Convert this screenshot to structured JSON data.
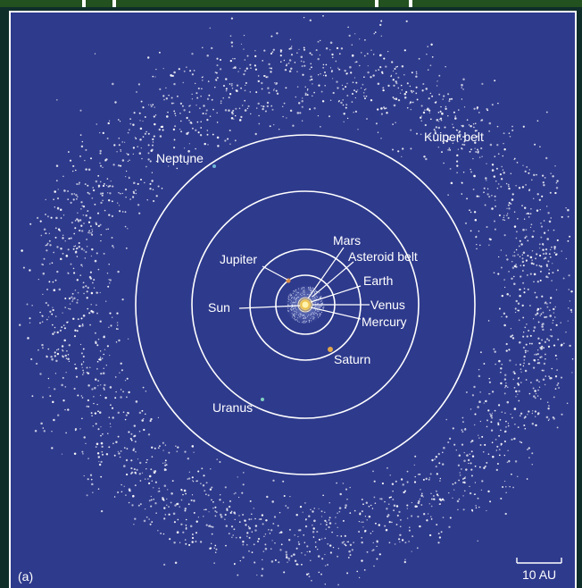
{
  "panel_label": "(a)",
  "scale_bar": {
    "label": "10 AU"
  },
  "labels": {
    "kuiper_belt": "Kuiper belt",
    "neptune": "Neptune",
    "mars": "Mars",
    "asteroid_belt": "Asteroid belt",
    "jupiter": "Jupiter",
    "earth": "Earth",
    "sun": "Sun",
    "venus": "Venus",
    "mercury": "Mercury",
    "saturn": "Saturn",
    "uranus": "Uranus"
  },
  "colors": {
    "space": "#2e3a8c",
    "orbit": "#ffffff",
    "sun": "#f5c542",
    "jupiter": "#d98c4a",
    "saturn": "#e0a64a",
    "uranus": "#7fd0c0",
    "neptune": "#6fb7d8"
  }
}
